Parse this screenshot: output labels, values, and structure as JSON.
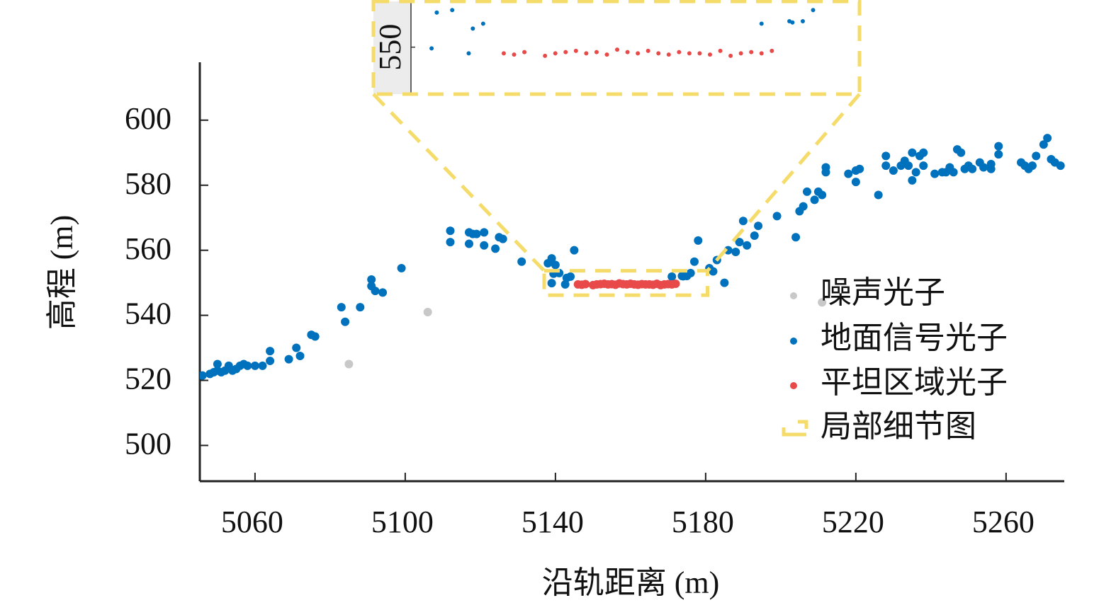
{
  "chart_data": {
    "type": "scatter",
    "xlabel": "沿轨距离 (m)",
    "ylabel": "高程 (m)",
    "xlim": [
      5045.3,
      5275.5
    ],
    "ylim": [
      489,
      617.8
    ],
    "xticks": [
      5060,
      5100,
      5140,
      5180,
      5220,
      5260
    ],
    "yticks": [
      500,
      520,
      540,
      560,
      580,
      600
    ],
    "legend": "right",
    "series": [
      {
        "name": "噪声光子",
        "color": "#c8c8c8",
        "x": [
          5085,
          5106,
          5211
        ],
        "y": [
          525,
          541,
          544
        ]
      },
      {
        "name": "地面信号光子",
        "color": "#0072bd",
        "x": [
          5046,
          5048,
          5049,
          5050,
          5050,
          5051,
          5052,
          5053,
          5054,
          5055,
          5056,
          5057,
          5058,
          5060,
          5062,
          5064,
          5064,
          5069,
          5071,
          5072,
          5075,
          5076,
          5083,
          5084,
          5088,
          5091,
          5091,
          5092,
          5094,
          5099,
          5112,
          5112,
          5117,
          5118,
          5117,
          5119,
          5121,
          5121,
          5124,
          5125,
          5126,
          5131,
          5138,
          5139,
          5140,
          5139,
          5139.5,
          5141,
          5142.6,
          5143,
          5144,
          5145,
          5171,
          5173.7,
          5174,
          5175,
          5176,
          5177,
          5178,
          5181,
          5182,
          5183,
          5185,
          5186,
          5188,
          5189,
          5190,
          5191,
          5193,
          5194,
          5199,
          5204,
          5205,
          5206,
          5207,
          5209,
          5210,
          5211,
          5212,
          5212,
          5218,
          5220,
          5220,
          5221,
          5226,
          5228,
          5228,
          5230,
          5232,
          5233,
          5234,
          5235,
          5235,
          5236,
          5237,
          5238,
          5238,
          5241,
          5243,
          5244,
          5245,
          5246,
          5247,
          5248,
          5249,
          5250,
          5251,
          5253,
          5254,
          5256,
          5256,
          5258,
          5258,
          5264,
          5265,
          5266,
          5267,
          5268,
          5270,
          5271,
          5272,
          5273,
          5274.5
        ],
        "y": [
          521.5,
          522,
          522.5,
          523,
          525,
          522.5,
          523,
          524.5,
          523,
          523.5,
          524.5,
          525,
          524.5,
          524.5,
          524.5,
          526,
          529,
          526.5,
          530,
          527.5,
          534,
          533.5,
          542.5,
          538,
          542.5,
          551,
          549,
          547.5,
          547,
          554.5,
          566,
          562.5,
          565.5,
          565,
          562,
          565,
          565.5,
          561.5,
          560.5,
          564,
          563.5,
          556.5,
          556,
          557.5,
          555.5,
          549.9,
          552.8,
          553,
          549.5,
          551.5,
          551.9,
          560,
          551.9,
          552.1,
          552,
          552.1,
          553,
          556.5,
          563,
          554.5,
          553.5,
          557,
          550,
          560,
          559.5,
          562.5,
          569,
          561.5,
          564.5,
          567.5,
          570.5,
          564,
          572,
          573.5,
          578,
          575.5,
          578,
          577,
          585.5,
          584,
          583.5,
          584.5,
          581,
          585,
          577,
          589,
          586,
          584.5,
          586,
          587.5,
          586,
          590,
          581.5,
          584,
          589,
          590,
          586,
          583.5,
          584,
          584,
          585.5,
          584,
          591,
          590,
          585,
          586,
          585,
          587,
          585.5,
          586.5,
          585,
          592,
          589.5,
          587,
          586,
          585,
          586,
          589,
          592.5,
          594.5,
          588,
          587,
          586
        ]
      },
      {
        "name": "平坦区域光子",
        "color": "#e84a4a",
        "x": [
          5146,
          5147,
          5148,
          5150,
          5151,
          5152,
          5153,
          5154,
          5155,
          5156,
          5157,
          5158,
          5159,
          5160,
          5161,
          5162,
          5163,
          5164,
          5165,
          5166,
          5167,
          5168,
          5169,
          5170,
          5171,
          5172
        ],
        "y": [
          549.5,
          549.4,
          549.6,
          549.3,
          549.5,
          549.6,
          549.7,
          549.5,
          549.6,
          549.4,
          549.8,
          549.6,
          549.5,
          549.7,
          549.5,
          549.4,
          549.6,
          549.5,
          549.5,
          549.4,
          549.7,
          549.3,
          549.5,
          549.6,
          549.5,
          549.7
        ]
      }
    ],
    "inset": {
      "name": "局部细节图",
      "color": "#f5dc6a",
      "xlim": [
        5137,
        5180.5
      ],
      "ylim": [
        546.2,
        553.7
      ],
      "yticks": [
        550
      ]
    }
  }
}
